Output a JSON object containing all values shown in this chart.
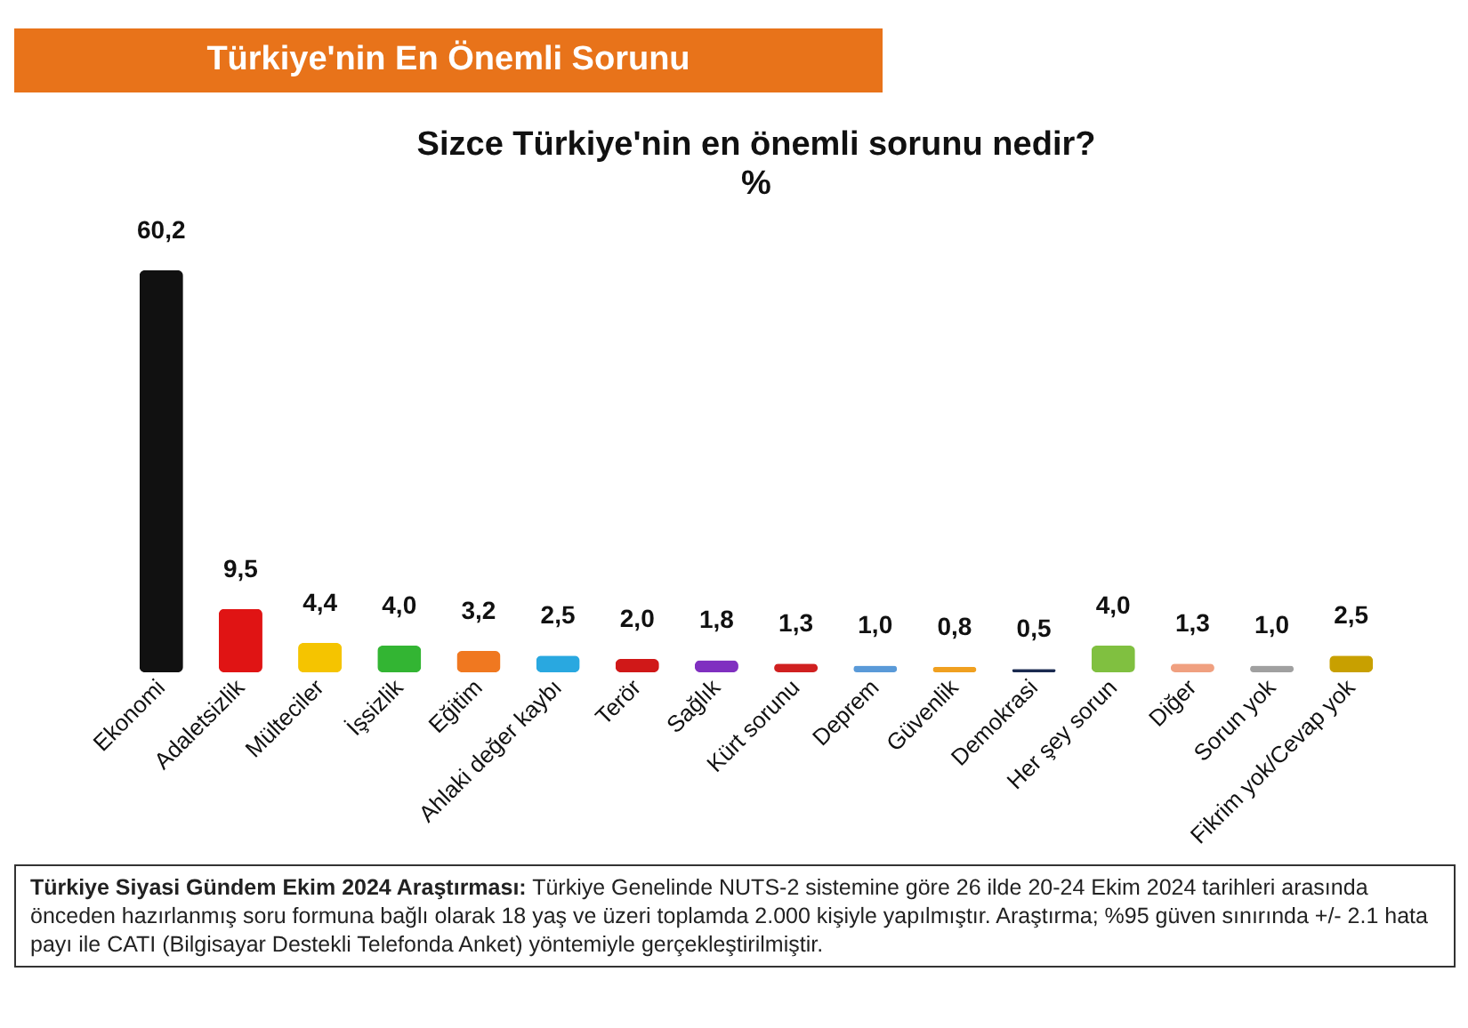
{
  "chart_data": {
    "type": "bar",
    "title": "Türkiye'nin En Önemli Sorunu",
    "subtitle": "Sizce Türkiye'nin en önemli sorunu nedir?",
    "ylabel": "%",
    "categories": [
      "Ekonomi",
      "Adaletsizlik",
      "Mülteciler",
      "İşsizlik",
      "Eğitim",
      "Ahlaki değer kaybı",
      "Terör",
      "Sağlık",
      "Kürt sorunu",
      "Deprem",
      "Güvenlik",
      "Demokrasi",
      "Her şey sorun",
      "Diğer",
      "Sorun yok",
      "Fikrim yok/Cevap yok"
    ],
    "values": [
      60.2,
      9.5,
      4.4,
      4.0,
      3.2,
      2.5,
      2.0,
      1.8,
      1.3,
      1.0,
      0.8,
      0.5,
      4.0,
      1.3,
      1.0,
      2.5
    ],
    "value_labels": [
      "60,2",
      "9,5",
      "4,4",
      "4,0",
      "3,2",
      "2,5",
      "2,0",
      "1,8",
      "1,3",
      "1,0",
      "0,8",
      "0,5",
      "4,0",
      "1,3",
      "1,0",
      "2,5"
    ],
    "colors": [
      "#111111",
      "#e01414",
      "#f5c400",
      "#33b533",
      "#f07820",
      "#29a8e0",
      "#d01818",
      "#8030c0",
      "#d02020",
      "#5a9ad8",
      "#f0a020",
      "#1a2a50",
      "#80c040",
      "#f0a080",
      "#a0a0a0",
      "#c8a000"
    ],
    "annotations": [
      "Türkiye Siyasi Gündem Ekim 2024 Araştırması:",
      "Türkiye Genelinde NUTS-2 sistemine göre 26 ilde 20-24 Ekim 2024 tarihleri arasında önceden hazırlanmış soru formuna bağlı olarak 18 yaş ve üzeri toplamda 2.000 kişiyle yapılmıştır. Araştırma; %95 güven sınırında +/- 2.1 hata payı ile CATI (Bilgisayar Destekli Telefonda Anket) yöntemiyle gerçekleştirilmiştir."
    ],
    "grid": false
  }
}
